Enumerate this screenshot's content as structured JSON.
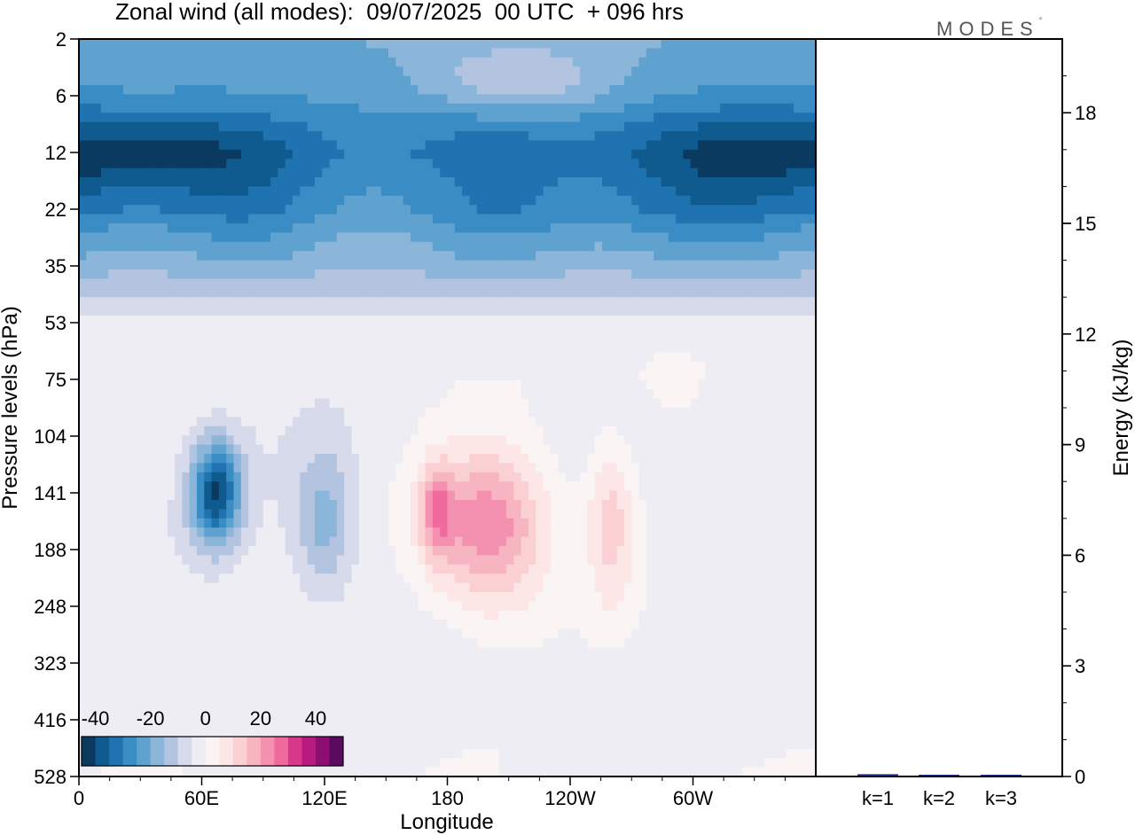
{
  "title": "Zonal wind (all modes):  09/07/2025  00 UTC  + 096 hrs",
  "brand": "MODES",
  "brand_mark": "°",
  "colors": {
    "palette": [
      "#0a3a60",
      "#0f5b8f",
      "#1e73b0",
      "#3a8cc4",
      "#5fa2d0",
      "#8cb5da",
      "#b3c4e0",
      "#d6daeb",
      "#eeedf4",
      "#faf4f5",
      "#fde6e6",
      "#fad0d3",
      "#f7b5c2",
      "#f591b0",
      "#f06a9e",
      "#d8388c",
      "#b91a80",
      "#8e0f72",
      "#5a0b60"
    ],
    "frame": "#000000",
    "bar": "#1f2a7a"
  },
  "chart_data": [
    {
      "type": "heatmap",
      "title": "Zonal wind (all modes):  09/07/2025  00 UTC  + 096 hrs",
      "xlabel": "Longitude",
      "ylabel": "Pressure levels (hPa)",
      "xlim": [
        0,
        360
      ],
      "x_ticks": [
        "0",
        "60E",
        "120E",
        "180",
        "120W",
        "60W"
      ],
      "x_tick_values": [
        0,
        60,
        120,
        180,
        240,
        300
      ],
      "y_ticks": [
        "2",
        "6",
        "12",
        "22",
        "35",
        "53",
        "75",
        "104",
        "141",
        "188",
        "248",
        "323",
        "416",
        "528"
      ],
      "colorbar": {
        "ticks": [
          "-40",
          "-20",
          "0",
          "20",
          "40"
        ],
        "tick_values": [
          -40,
          -20,
          0,
          20,
          40
        ],
        "range": [
          -45,
          50
        ],
        "step": 5
      },
      "features": [
        {
          "lon": 45,
          "level_index": 2,
          "value": -42,
          "lon_spread": 55,
          "lev_spread": 0.8
        },
        {
          "lon": 340,
          "level_index": 2,
          "value": -40,
          "lon_spread": 45,
          "lev_spread": 0.8
        },
        {
          "lon": 290,
          "level_index": 2,
          "value": -36,
          "lon_spread": 40,
          "lev_spread": 0.9
        },
        {
          "lon": 150,
          "level_index": 3,
          "value": -26,
          "lon_spread": 60,
          "lev_spread": 1.0
        },
        {
          "lon": 67,
          "level_index": 8,
          "value": -40,
          "lon_spread": 12,
          "lev_spread": 0.9
        },
        {
          "lon": 120,
          "level_index": 8.5,
          "value": -18,
          "lon_spread": 15,
          "lev_spread": 1.3
        },
        {
          "lon": 200,
          "level_index": 8.6,
          "value": 25,
          "lon_spread": 30,
          "lev_spread": 1.4
        },
        {
          "lon": 175,
          "level_index": 8.3,
          "value": 15,
          "lon_spread": 8,
          "lev_spread": 0.8
        },
        {
          "lon": 260,
          "level_index": 8.5,
          "value": 12,
          "lon_spread": 12,
          "lev_spread": 1.5
        },
        {
          "lon": 290,
          "level_index": 6,
          "value": 5,
          "lon_spread": 15,
          "lev_spread": 0.6
        }
      ]
    },
    {
      "type": "bar",
      "ylabel": "Energy (kJ/kg)",
      "categories": [
        "k=1",
        "k=2",
        "k=3"
      ],
      "values": [
        0.05,
        0.02,
        0.01
      ],
      "ylim": [
        0,
        20
      ],
      "y_ticks": [
        "0",
        "3",
        "6",
        "9",
        "12",
        "15",
        "18"
      ],
      "y_tick_values": [
        0,
        3,
        6,
        9,
        12,
        15,
        18
      ]
    }
  ]
}
